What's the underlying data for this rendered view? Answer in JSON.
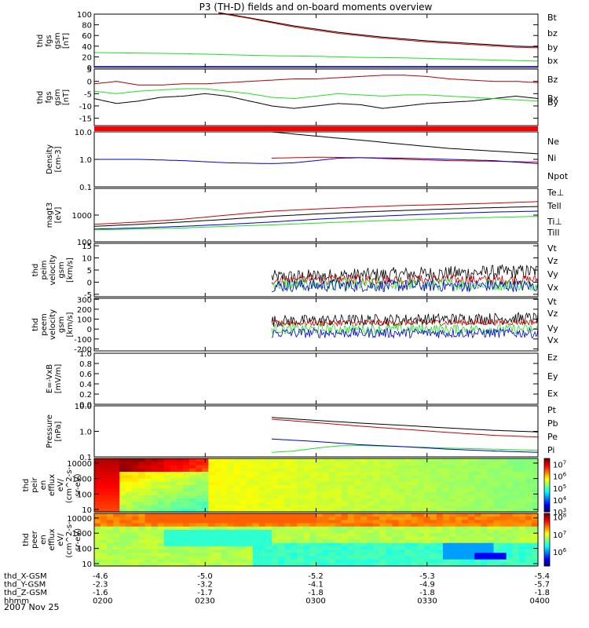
{
  "title": "P3 (TH-D) fields and on-board moments overview",
  "date": "2007 Nov 25",
  "ephemeris": {
    "rows": [
      {
        "label": "thd_X-GSM",
        "values": [
          "-4.6",
          "-5.0",
          "-5.2",
          "-5.3",
          "-5.4"
        ]
      },
      {
        "label": "thd_Y-GSM",
        "values": [
          "-2.3",
          "-3.2",
          "-4.1",
          "-4.9",
          "-5.7"
        ]
      },
      {
        "label": "thd_Z-GSM",
        "values": [
          "-1.6",
          "-1.7",
          "-1.8",
          "-1.8",
          "-1.8"
        ]
      },
      {
        "label": "hhmm",
        "values": [
          "0200",
          "0230",
          "0300",
          "0330",
          "0400"
        ]
      }
    ]
  },
  "colors": {
    "black": "#000000",
    "red": "#cc0000",
    "green": "#22dd22",
    "blue": "#0000cc",
    "darkred": "#aa0000",
    "redbar": "#ff0000"
  },
  "chart_data": [
    {
      "type": "line",
      "ylabel": [
        "thd",
        "fgs",
        "gsm",
        "[nT]"
      ],
      "ylim": [
        0,
        100
      ],
      "yticks": [
        "0",
        "20",
        "40",
        "60",
        "80",
        "100"
      ],
      "x_time": [
        "02:00",
        "02:30",
        "03:00",
        "03:30",
        "04:00"
      ],
      "series": [
        {
          "name": "Bt",
          "color": "black",
          "x": [
            0.28,
            0.35,
            0.45,
            0.55,
            0.65,
            0.75,
            0.85,
            0.95,
            1.0
          ],
          "y": [
            103,
            93,
            78,
            66,
            57,
            50,
            45,
            40,
            39
          ]
        },
        {
          "name": "bz",
          "color": "red",
          "x": [
            0.28,
            0.35,
            0.45,
            0.55,
            0.65,
            0.75,
            0.85,
            0.95,
            1.0
          ],
          "y": [
            102,
            92,
            76,
            64,
            55,
            48,
            43,
            38,
            37
          ]
        },
        {
          "name": "by",
          "color": "green",
          "x": [
            0.0,
            0.1,
            0.2,
            0.3,
            0.4,
            0.5,
            0.6,
            0.7,
            0.8,
            0.9,
            1.0
          ],
          "y": [
            28,
            27,
            26,
            24,
            22,
            21,
            19,
            18,
            16,
            14,
            12
          ]
        },
        {
          "name": "bx",
          "color": "blue",
          "x": [
            0.0,
            0.3,
            0.6,
            1.0
          ],
          "y": [
            2,
            2,
            2,
            2
          ]
        }
      ]
    },
    {
      "type": "line",
      "ylabel": [
        "thd",
        "fgs",
        "gsm",
        "[nT]"
      ],
      "ylim": [
        -18,
        5
      ],
      "yticks": [
        "-15",
        "-10",
        "-5",
        "0",
        "5"
      ],
      "series": [
        {
          "name": "Bz",
          "color": "darkred",
          "x": [
            0.0,
            0.05,
            0.1,
            0.15,
            0.2,
            0.25,
            0.3,
            0.35,
            0.4,
            0.45,
            0.5,
            0.55,
            0.6,
            0.65,
            0.7,
            0.75,
            0.8,
            0.85,
            0.9,
            0.95,
            1.0
          ],
          "y": [
            -1,
            0,
            -1.5,
            -1.5,
            -1,
            -1,
            -0.5,
            0,
            0.5,
            1,
            1,
            1.5,
            2,
            2.5,
            2.5,
            2,
            1,
            0.5,
            0,
            0,
            -0.5
          ]
        },
        {
          "name": "Bx",
          "color": "black",
          "x": [
            0.0,
            0.05,
            0.1,
            0.15,
            0.2,
            0.25,
            0.3,
            0.35,
            0.4,
            0.45,
            0.5,
            0.55,
            0.6,
            0.65,
            0.7,
            0.75,
            0.8,
            0.85,
            0.9,
            0.95,
            1.0
          ],
          "y": [
            -7,
            -9,
            -8,
            -6.5,
            -6,
            -5,
            -6,
            -8,
            -10,
            -11,
            -10,
            -9,
            -9.5,
            -11,
            -10,
            -9,
            -8.5,
            -8,
            -7,
            -6,
            -7
          ]
        },
        {
          "name": "By",
          "color": "green",
          "x": [
            0.0,
            0.05,
            0.1,
            0.15,
            0.2,
            0.25,
            0.3,
            0.35,
            0.4,
            0.45,
            0.5,
            0.55,
            0.6,
            0.65,
            0.7,
            0.75,
            0.8,
            0.85,
            0.9,
            0.95,
            1.0
          ],
          "y": [
            -4,
            -5,
            -4,
            -3.5,
            -3,
            -3,
            -4,
            -5,
            -6.5,
            -7,
            -6,
            -5,
            -5.5,
            -6,
            -5.5,
            -5.5,
            -6,
            -6.5,
            -7,
            -7.5,
            -8
          ]
        }
      ]
    },
    {
      "type": "line",
      "ylabel": [
        "Density",
        "[cm-3]"
      ],
      "yscale": "log",
      "ylim": [
        0.1,
        10.0
      ],
      "yticks": [
        "0.1",
        "1.0",
        "10.0"
      ],
      "series": [
        {
          "name": "Ne",
          "color": "black",
          "x": [
            0.4,
            0.5,
            0.6,
            0.7,
            0.8,
            0.9,
            1.0
          ],
          "y": [
            10,
            7,
            5,
            3.5,
            2.5,
            2,
            1.6
          ]
        },
        {
          "name": "Ni",
          "color": "red",
          "x": [
            0.4,
            0.5,
            0.6,
            0.7,
            0.8,
            0.9,
            1.0
          ],
          "y": [
            1.1,
            1.2,
            1.15,
            1.0,
            0.9,
            0.85,
            0.8
          ]
        },
        {
          "name": "Npot",
          "color": "blue",
          "x": [
            0.0,
            0.1,
            0.2,
            0.3,
            0.4,
            0.45,
            0.5,
            0.55,
            0.6,
            0.7,
            0.8,
            0.9,
            1.0
          ],
          "y": [
            1.0,
            1.0,
            0.9,
            0.75,
            0.7,
            0.75,
            0.9,
            1.1,
            1.15,
            1.1,
            1.0,
            0.9,
            0.7
          ]
        }
      ]
    },
    {
      "type": "line",
      "ylabel": [
        "magt3",
        "[eV]"
      ],
      "yscale": "log",
      "ylim": [
        100,
        10000
      ],
      "yticks": [
        "100",
        "1000"
      ],
      "series": [
        {
          "name": "Te⊥",
          "color": "red",
          "x": [
            0.0,
            0.1,
            0.2,
            0.3,
            0.4,
            0.5,
            0.6,
            0.7,
            0.8,
            0.9,
            1.0
          ],
          "y": [
            450,
            550,
            700,
            1000,
            1400,
            1700,
            2000,
            2300,
            2500,
            2800,
            3200
          ]
        },
        {
          "name": "Tell",
          "color": "black",
          "x": [
            0.0,
            0.1,
            0.2,
            0.3,
            0.4,
            0.5,
            0.6,
            0.7,
            0.8,
            0.9,
            1.0
          ],
          "y": [
            380,
            450,
            550,
            700,
            900,
            1100,
            1300,
            1500,
            1700,
            1900,
            2100
          ]
        },
        {
          "name": "Ti⊥",
          "color": "blue",
          "x": [
            0.0,
            0.1,
            0.2,
            0.3,
            0.4,
            0.5,
            0.6,
            0.7,
            0.8,
            0.9,
            1.0
          ],
          "y": [
            300,
            330,
            380,
            450,
            550,
            700,
            850,
            1000,
            1150,
            1300,
            1400
          ]
        },
        {
          "name": "Till",
          "color": "green",
          "x": [
            0.0,
            0.1,
            0.2,
            0.3,
            0.4,
            0.5,
            0.6,
            0.7,
            0.8,
            0.9,
            1.0
          ],
          "y": [
            280,
            300,
            330,
            380,
            430,
            500,
            580,
            660,
            740,
            820,
            900
          ]
        }
      ]
    },
    {
      "type": "line",
      "ylabel": [
        "thd",
        "peim",
        "velocity",
        "gsm",
        "[km/s]"
      ],
      "ylim": [
        -6,
        16
      ],
      "yticks": [
        "-5",
        "0",
        "5",
        "10",
        "15"
      ],
      "noisy": true,
      "series": [
        {
          "name": "Vt",
          "color": "black",
          "start": 0.4,
          "base": 2,
          "amp": 3,
          "trend": 5
        },
        {
          "name": "Vz",
          "color": "red",
          "start": 0.4,
          "base": 1,
          "amp": 2,
          "trend": 0
        },
        {
          "name": "Vy",
          "color": "green",
          "start": 0.4,
          "base": -1,
          "amp": 2.5,
          "trend": 0
        },
        {
          "name": "Vx",
          "color": "blue",
          "start": 0.4,
          "base": -1.5,
          "amp": 2.5,
          "trend": 0
        }
      ]
    },
    {
      "type": "line",
      "ylabel": [
        "thd",
        "peem",
        "velocity",
        "gsm",
        "[km/s]"
      ],
      "ylim": [
        -220,
        310
      ],
      "yticks": [
        "-200",
        "-100",
        "0",
        "100",
        "200",
        "300"
      ],
      "noisy": true,
      "series": [
        {
          "name": "Vt",
          "color": "black",
          "start": 0.4,
          "base": 80,
          "amp": 60,
          "trend": 60
        },
        {
          "name": "Vz",
          "color": "red",
          "start": 0.4,
          "base": 60,
          "amp": 30,
          "trend": 20
        },
        {
          "name": "Vy",
          "color": "green",
          "start": 0.4,
          "base": 0,
          "amp": 50,
          "trend": 0
        },
        {
          "name": "Vx",
          "color": "blue",
          "start": 0.4,
          "base": -40,
          "amp": 50,
          "trend": 0
        }
      ]
    },
    {
      "type": "line",
      "ylabel": [
        "E=-VxB",
        "[mV/m]"
      ],
      "ylim": [
        0.0,
        1.0
      ],
      "yticks": [
        "0.0",
        "0.2",
        "0.4",
        "0.6",
        "0.8",
        "1.0"
      ],
      "series": [
        {
          "name": "Ez",
          "color": "red",
          "x": [],
          "y": []
        },
        {
          "name": "Ey",
          "color": "green",
          "x": [],
          "y": []
        },
        {
          "name": "Ex",
          "color": "blue",
          "x": [],
          "y": []
        }
      ]
    },
    {
      "type": "line",
      "ylabel": [
        "Pressure",
        "[nPa]"
      ],
      "yscale": "log",
      "ylim": [
        0.1,
        10.0
      ],
      "yticks": [
        "0.1",
        "1.0",
        "10.0"
      ],
      "series": [
        {
          "name": "Pt",
          "color": "black",
          "x": [
            0.4,
            0.5,
            0.6,
            0.7,
            0.8,
            0.9,
            1.0
          ],
          "y": [
            3.5,
            2.7,
            2.1,
            1.7,
            1.35,
            1.1,
            0.95
          ]
        },
        {
          "name": "Pb",
          "color": "red",
          "x": [
            0.4,
            0.5,
            0.6,
            0.7,
            0.8,
            0.9,
            1.0
          ],
          "y": [
            3.0,
            2.2,
            1.6,
            1.2,
            0.9,
            0.7,
            0.6
          ]
        },
        {
          "name": "Pe",
          "color": "green",
          "x": [
            0.4,
            0.45,
            0.5,
            0.55,
            0.6,
            0.7,
            0.8,
            0.9,
            1.0
          ],
          "y": [
            0.15,
            0.17,
            0.22,
            0.27,
            0.28,
            0.25,
            0.22,
            0.2,
            0.18
          ]
        },
        {
          "name": "Pi",
          "color": "blue",
          "x": [
            0.4,
            0.5,
            0.6,
            0.7,
            0.8,
            0.9,
            1.0
          ],
          "y": [
            0.5,
            0.4,
            0.3,
            0.25,
            0.2,
            0.17,
            0.15
          ]
        }
      ]
    },
    {
      "type": "heatmap",
      "ylabel": [
        "thd",
        "peir",
        "en",
        "efflux",
        "eV/",
        "(cm^2-s-",
        "sr-eV)"
      ],
      "yscale": "log",
      "ylim": [
        7,
        20000
      ],
      "yticks": [
        "10",
        "100",
        "1000",
        "10000"
      ],
      "colorbar": {
        "ticks": [
          "10^3",
          "10^4",
          "10^5",
          "10^6",
          "10^7"
        ],
        "range": [
          3,
          7.5
        ]
      },
      "ranges": [
        3,
        7.5
      ]
    },
    {
      "type": "heatmap",
      "ylabel": [
        "thd",
        "peer",
        "en",
        "efflux",
        "eV/",
        "(cm^2-s-",
        "sr-eV)"
      ],
      "yscale": "log",
      "ylim": [
        7,
        20000
      ],
      "yticks": [
        "10",
        "100",
        "1000",
        "10000"
      ],
      "colorbar": {
        "ticks": [
          "10^6",
          "10^7",
          "10^8"
        ],
        "range": [
          5.2,
          8.2
        ]
      },
      "ranges": [
        5.2,
        8.2
      ]
    }
  ]
}
